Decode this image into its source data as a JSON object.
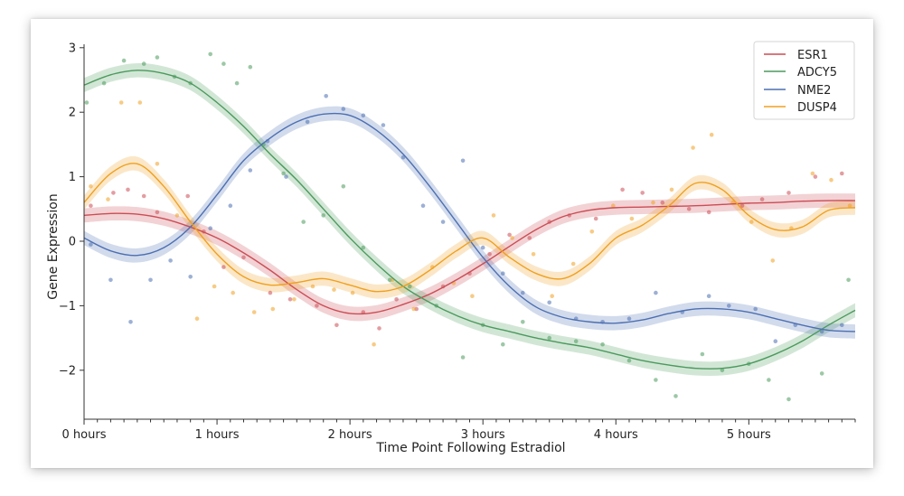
{
  "chart_data": {
    "type": "line",
    "title": "",
    "xlabel": "Time Point Following Estradiol",
    "ylabel": "Gene Expression",
    "xlim": [
      0,
      5.8
    ],
    "ylim": [
      -2.6,
      3.1
    ],
    "x_ticks": [
      0,
      1,
      2,
      3,
      4,
      5
    ],
    "x_tick_labels": [
      "0 hours",
      "1 hours",
      "2 hours",
      "3 hours",
      "4 hours",
      "5 hours"
    ],
    "y_ticks": [
      -2,
      -1,
      0,
      1,
      2,
      3
    ],
    "y_tick_labels": [
      "−2",
      "−1",
      "0",
      "1",
      "2",
      "3"
    ],
    "legend_position": "top-right",
    "band_halfwidth": 0.11,
    "series": [
      {
        "name": "ESR1",
        "color": "#cc4c55",
        "x": [
          0,
          0.2,
          0.4,
          0.6,
          0.8,
          1.0,
          1.2,
          1.4,
          1.6,
          1.8,
          2.0,
          2.2,
          2.4,
          2.6,
          2.8,
          3.0,
          3.2,
          3.4,
          3.6,
          3.8,
          4.0,
          4.2,
          4.4,
          4.6,
          4.8,
          5.0,
          5.2,
          5.4,
          5.6,
          5.8
        ],
        "y": [
          0.4,
          0.43,
          0.42,
          0.35,
          0.22,
          0.05,
          -0.18,
          -0.45,
          -0.75,
          -1.0,
          -1.12,
          -1.1,
          -0.98,
          -0.82,
          -0.6,
          -0.35,
          -0.08,
          0.18,
          0.38,
          0.48,
          0.52,
          0.53,
          0.54,
          0.55,
          0.57,
          0.59,
          0.6,
          0.62,
          0.63,
          0.63
        ],
        "scatter_x": [
          0.05,
          0.22,
          0.33,
          0.45,
          0.55,
          0.78,
          0.9,
          1.05,
          1.2,
          1.4,
          1.55,
          1.75,
          1.9,
          2.1,
          2.22,
          2.35,
          2.5,
          2.7,
          2.9,
          3.05,
          3.2,
          3.35,
          3.5,
          3.65,
          3.85,
          4.05,
          4.2,
          4.35,
          4.55,
          4.7,
          4.95,
          5.1,
          5.3,
          5.5,
          5.7
        ],
        "scatter_y": [
          0.55,
          0.75,
          0.8,
          0.7,
          0.45,
          0.7,
          0.15,
          -0.4,
          -0.25,
          -0.8,
          -0.9,
          -1.0,
          -1.3,
          -1.1,
          -1.35,
          -0.9,
          -1.05,
          -0.7,
          -0.5,
          -0.2,
          0.1,
          0.05,
          0.3,
          0.4,
          0.35,
          0.8,
          0.75,
          0.6,
          0.5,
          0.45,
          0.55,
          0.65,
          0.75,
          1.0,
          1.05
        ]
      },
      {
        "name": "ADCY5",
        "color": "#4a9a5c",
        "x": [
          0,
          0.2,
          0.4,
          0.6,
          0.8,
          1.0,
          1.2,
          1.4,
          1.6,
          1.8,
          2.0,
          2.2,
          2.4,
          2.6,
          2.8,
          3.0,
          3.2,
          3.4,
          3.6,
          3.8,
          4.0,
          4.2,
          4.4,
          4.6,
          4.8,
          5.0,
          5.2,
          5.4,
          5.6,
          5.8
        ],
        "y": [
          2.42,
          2.58,
          2.65,
          2.6,
          2.45,
          2.15,
          1.78,
          1.35,
          0.95,
          0.5,
          0.05,
          -0.35,
          -0.7,
          -0.95,
          -1.15,
          -1.3,
          -1.4,
          -1.5,
          -1.58,
          -1.65,
          -1.75,
          -1.85,
          -1.92,
          -1.97,
          -1.97,
          -1.9,
          -1.75,
          -1.55,
          -1.3,
          -1.07
        ],
        "scatter_x": [
          0.02,
          0.15,
          0.3,
          0.45,
          0.55,
          0.68,
          0.8,
          0.95,
          1.05,
          1.15,
          1.25,
          1.35,
          1.5,
          1.65,
          1.8,
          1.95,
          2.1,
          2.3,
          2.45,
          2.65,
          2.85,
          3.0,
          3.15,
          3.3,
          3.5,
          3.7,
          3.9,
          4.1,
          4.3,
          4.45,
          4.65,
          4.8,
          5.0,
          5.15,
          5.3,
          5.55,
          5.75
        ],
        "scatter_y": [
          2.15,
          2.45,
          2.8,
          2.75,
          2.85,
          2.55,
          2.45,
          2.9,
          2.75,
          2.45,
          2.7,
          1.5,
          1.05,
          0.3,
          0.4,
          0.85,
          -0.1,
          -0.6,
          -0.7,
          -1.0,
          -1.8,
          -1.3,
          -1.6,
          -1.25,
          -1.5,
          -1.55,
          -1.6,
          -1.85,
          -2.15,
          -2.4,
          -1.75,
          -2.0,
          -1.9,
          -2.15,
          -2.45,
          -2.05,
          -0.6
        ]
      },
      {
        "name": "NME2",
        "color": "#4c6fb2",
        "x": [
          0,
          0.2,
          0.4,
          0.6,
          0.8,
          1.0,
          1.2,
          1.4,
          1.6,
          1.8,
          2.0,
          2.2,
          2.4,
          2.6,
          2.8,
          3.0,
          3.2,
          3.4,
          3.6,
          3.8,
          4.0,
          4.2,
          4.4,
          4.6,
          4.8,
          5.0,
          5.2,
          5.4,
          5.6,
          5.8
        ],
        "y": [
          0.05,
          -0.15,
          -0.22,
          -0.1,
          0.22,
          0.72,
          1.25,
          1.6,
          1.85,
          1.97,
          1.95,
          1.72,
          1.35,
          0.85,
          0.3,
          -0.25,
          -0.7,
          -1.02,
          -1.18,
          -1.25,
          -1.27,
          -1.22,
          -1.12,
          -1.05,
          -1.05,
          -1.1,
          -1.2,
          -1.3,
          -1.38,
          -1.4
        ],
        "scatter_x": [
          0.05,
          0.2,
          0.35,
          0.5,
          0.65,
          0.8,
          0.95,
          1.1,
          1.25,
          1.38,
          1.52,
          1.68,
          1.82,
          1.95,
          2.1,
          2.25,
          2.4,
          2.55,
          2.7,
          2.85,
          3.0,
          3.15,
          3.3,
          3.5,
          3.7,
          3.9,
          4.1,
          4.3,
          4.5,
          4.7,
          4.85,
          5.05,
          5.2,
          5.35,
          5.55,
          5.7
        ],
        "scatter_y": [
          -0.05,
          -0.6,
          -1.25,
          -0.6,
          -0.3,
          -0.55,
          0.2,
          0.55,
          1.1,
          1.55,
          1.0,
          1.85,
          2.25,
          2.05,
          1.95,
          1.8,
          1.3,
          0.55,
          0.3,
          1.25,
          -0.1,
          -0.5,
          -0.8,
          -0.95,
          -1.2,
          -1.25,
          -1.2,
          -0.8,
          -1.1,
          -0.85,
          -1.0,
          -1.05,
          -1.55,
          -1.3,
          -1.4,
          -1.3
        ]
      },
      {
        "name": "DUSP4",
        "color": "#f0a020",
        "x": [
          0,
          0.2,
          0.4,
          0.6,
          0.8,
          1.0,
          1.2,
          1.4,
          1.6,
          1.8,
          2.0,
          2.2,
          2.4,
          2.6,
          2.8,
          3.0,
          3.2,
          3.4,
          3.6,
          3.8,
          4.0,
          4.2,
          4.4,
          4.6,
          4.8,
          5.0,
          5.2,
          5.4,
          5.6,
          5.8
        ],
        "y": [
          0.6,
          1.05,
          1.2,
          0.85,
          0.3,
          -0.2,
          -0.55,
          -0.68,
          -0.64,
          -0.58,
          -0.68,
          -0.78,
          -0.7,
          -0.45,
          -0.15,
          0.05,
          -0.25,
          -0.5,
          -0.58,
          -0.35,
          0.05,
          0.25,
          0.55,
          0.9,
          0.8,
          0.4,
          0.18,
          0.22,
          0.48,
          0.52
        ],
        "scatter_x": [
          0.05,
          0.18,
          0.28,
          0.42,
          0.55,
          0.7,
          0.85,
          0.98,
          1.12,
          1.28,
          1.42,
          1.58,
          1.72,
          1.88,
          2.02,
          2.18,
          2.32,
          2.48,
          2.62,
          2.78,
          2.92,
          3.08,
          3.22,
          3.38,
          3.52,
          3.68,
          3.82,
          3.98,
          4.12,
          4.28,
          4.42,
          4.58,
          4.72,
          4.88,
          5.02,
          5.18,
          5.32,
          5.48,
          5.62,
          5.76
        ],
        "scatter_y": [
          0.85,
          0.65,
          2.15,
          2.15,
          1.2,
          0.4,
          -1.2,
          -0.7,
          -0.8,
          -1.1,
          -1.05,
          -0.9,
          -0.7,
          -0.75,
          -0.8,
          -1.6,
          -0.6,
          -1.05,
          -0.4,
          -0.65,
          -0.85,
          0.4,
          0.05,
          -0.2,
          -0.85,
          -0.35,
          0.15,
          0.55,
          0.35,
          0.6,
          0.8,
          1.45,
          1.65,
          0.6,
          0.3,
          -0.3,
          0.2,
          1.05,
          0.95,
          0.55
        ]
      }
    ]
  }
}
